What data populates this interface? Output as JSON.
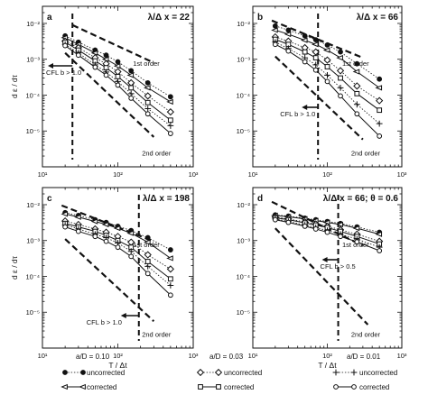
{
  "figure": {
    "shared_ylabel": "d ε / dτ",
    "shared_xlabel": "T / Δt",
    "legend": {
      "groups": [
        {
          "title": "a/D = 0.10",
          "uncorrected_label": "uncorrected",
          "corrected_label": "corrected",
          "uncorrected_marker": "filled-circle",
          "corrected_marker": "open-triangle-left"
        },
        {
          "title": "a/D = 0.03",
          "uncorrected_label": "uncorrected",
          "corrected_label": "corrected",
          "uncorrected_marker": "open-diamond",
          "corrected_marker": "open-square"
        },
        {
          "title": "a/D = 0.01",
          "uncorrected_label": "uncorrected",
          "corrected_label": "corrected",
          "uncorrected_marker": "plus",
          "corrected_marker": "open-circle"
        }
      ]
    }
  },
  "chart_data": [
    {
      "type": "line",
      "panel": "a",
      "title": "λ/Δ x = 22",
      "xlabel": "",
      "ylabel": "d ε / dτ",
      "xscale": "log",
      "yscale": "log",
      "xlim": [
        10,
        1000
      ],
      "ylim": [
        1e-06,
        0.03
      ],
      "x_tick_labels": [
        "10¹",
        "10²",
        "10³"
      ],
      "y_tick_labels": [
        "10⁻²",
        "10⁻³",
        "10⁻⁴",
        "10⁻⁵"
      ],
      "annotations": [
        "1st order",
        "2nd order",
        "CFL b > 1.0"
      ],
      "series": [
        {
          "name": "a/D = 0.10 uncorrected",
          "x": [
            20,
            30,
            50,
            70,
            100,
            150,
            250,
            500
          ],
          "y": [
            0.0045,
            0.003,
            0.0018,
            0.0013,
            0.00085,
            0.00048,
            0.00022,
            9e-05
          ]
        },
        {
          "name": "a/D = 0.10 corrected",
          "x": [
            20,
            30,
            50,
            70,
            100,
            150,
            250,
            500
          ],
          "y": [
            0.004,
            0.0026,
            0.0015,
            0.001,
            0.00065,
            0.00036,
            0.00016,
            6.5e-05
          ]
        },
        {
          "name": "a/D = 0.03 uncorrected",
          "x": [
            20,
            30,
            50,
            70,
            100,
            150,
            250,
            500
          ],
          "y": [
            0.0032,
            0.0021,
            0.0011,
            0.00075,
            0.00045,
            0.00022,
            9.5e-05,
            3.4e-05
          ]
        },
        {
          "name": "a/D = 0.03 corrected",
          "x": [
            20,
            30,
            50,
            70,
            100,
            150,
            250,
            500
          ],
          "y": [
            0.003,
            0.0018,
            0.0009,
            0.00058,
            0.00033,
            0.00016,
            6.2e-05,
            2e-05
          ]
        },
        {
          "name": "a/D = 0.01 uncorrected",
          "x": [
            20,
            30,
            50,
            70,
            100,
            150,
            250,
            500
          ],
          "y": [
            0.0026,
            0.0015,
            0.0007,
            0.00044,
            0.00024,
            0.00011,
            4.2e-05,
            1.4e-05
          ]
        },
        {
          "name": "a/D = 0.01 corrected",
          "x": [
            20,
            30,
            50,
            70,
            100,
            150,
            250,
            500
          ],
          "y": [
            0.0024,
            0.0013,
            0.0006,
            0.00036,
            0.00019,
            8.2e-05,
            3e-05,
            8.5e-06
          ]
        }
      ],
      "reference_lines": [
        {
          "name": "1st order",
          "x": [
            25,
            300
          ],
          "y": [
            0.009,
            0.0008
          ]
        },
        {
          "name": "2nd order",
          "x": [
            20,
            300
          ],
          "y": [
            0.0015,
            6.8e-06
          ]
        }
      ],
      "cfl_x": 25
    },
    {
      "type": "line",
      "panel": "b",
      "title": "λ/Δ x = 66",
      "xlabel": "",
      "ylabel": "",
      "xscale": "log",
      "yscale": "log",
      "xlim": [
        10,
        1000
      ],
      "ylim": [
        1e-06,
        0.03
      ],
      "x_tick_labels": [
        "10¹",
        "10²",
        "10³"
      ],
      "y_tick_labels": [
        "10⁻²",
        "10⁻³",
        "10⁻⁴",
        "10⁻⁵"
      ],
      "annotations": [
        "1st order",
        "2nd order",
        "CFL b > 1.0"
      ],
      "series": [
        {
          "name": "a/D = 0.10 uncorrected",
          "x": [
            20,
            30,
            50,
            70,
            100,
            150,
            250,
            500
          ],
          "y": [
            0.0085,
            0.0065,
            0.0045,
            0.0035,
            0.0025,
            0.0016,
            0.00075,
            0.00028
          ]
        },
        {
          "name": "a/D = 0.10 corrected",
          "x": [
            20,
            30,
            50,
            70,
            100,
            150,
            250,
            500
          ],
          "y": [
            0.0065,
            0.005,
            0.0034,
            0.0026,
            0.0018,
            0.0011,
            0.00045,
            0.00016
          ]
        },
        {
          "name": "a/D = 0.03 uncorrected",
          "x": [
            20,
            30,
            50,
            70,
            100,
            150,
            250,
            500
          ],
          "y": [
            0.0042,
            0.0032,
            0.0021,
            0.0016,
            0.00095,
            0.00048,
            0.00018,
            7e-05
          ]
        },
        {
          "name": "a/D = 0.03 corrected",
          "x": [
            20,
            30,
            50,
            70,
            100,
            150,
            250,
            500
          ],
          "y": [
            0.0036,
            0.0026,
            0.0016,
            0.0011,
            0.00062,
            0.0003,
            0.00011,
            3.8e-05
          ]
        },
        {
          "name": "a/D = 0.01 uncorrected",
          "x": [
            20,
            30,
            50,
            70,
            100,
            150,
            250,
            500
          ],
          "y": [
            0.003,
            0.002,
            0.0011,
            0.0007,
            0.00036,
            0.00016,
            5.5e-05,
            1.6e-05
          ]
        },
        {
          "name": "a/D = 0.01 corrected",
          "x": [
            20,
            30,
            50,
            70,
            100,
            150,
            250,
            500
          ],
          "y": [
            0.0026,
            0.0017,
            0.00085,
            0.0005,
            0.00024,
            9.5e-05,
            3e-05,
            7.2e-06
          ]
        }
      ],
      "reference_lines": [
        {
          "name": "1st order",
          "x": [
            18,
            300
          ],
          "y": [
            0.012,
            0.0011
          ]
        },
        {
          "name": "2nd order",
          "x": [
            20,
            300
          ],
          "y": [
            0.0012,
            5.8e-06
          ]
        }
      ],
      "cfl_x": 75
    },
    {
      "type": "line",
      "panel": "c",
      "title": "λ/Δ x = 198",
      "xlabel": "T / Δt",
      "ylabel": "d ε / dτ",
      "xscale": "log",
      "yscale": "log",
      "xlim": [
        10,
        1000
      ],
      "ylim": [
        1e-06,
        0.03
      ],
      "x_tick_labels": [
        "10¹",
        "10²",
        "10³"
      ],
      "y_tick_labels": [
        "10⁻²",
        "10⁻³",
        "10⁻⁴",
        "10⁻⁵"
      ],
      "annotations": [
        "1st order",
        "2nd order",
        "CFL b > 1.0"
      ],
      "series": [
        {
          "name": "a/D = 0.10 uncorrected",
          "x": [
            20,
            30,
            50,
            70,
            100,
            150,
            250,
            500
          ],
          "y": [
            0.006,
            0.005,
            0.0038,
            0.0032,
            0.0025,
            0.0019,
            0.0012,
            0.00055
          ]
        },
        {
          "name": "a/D = 0.10 corrected",
          "x": [
            20,
            30,
            50,
            70,
            100,
            150,
            250,
            500
          ],
          "y": [
            0.0055,
            0.0045,
            0.0034,
            0.0028,
            0.0022,
            0.0016,
            0.0009,
            0.00032
          ]
        },
        {
          "name": "a/D = 0.03 uncorrected",
          "x": [
            20,
            30,
            50,
            70,
            100,
            150,
            250,
            500
          ],
          "y": [
            0.0035,
            0.0028,
            0.0021,
            0.0017,
            0.0013,
            0.0009,
            0.0004,
            0.00016
          ]
        },
        {
          "name": "a/D = 0.03 corrected",
          "x": [
            20,
            30,
            50,
            70,
            100,
            150,
            250,
            500
          ],
          "y": [
            0.003,
            0.0024,
            0.0018,
            0.0014,
            0.001,
            0.00065,
            0.00026,
            8.5e-05
          ]
        },
        {
          "name": "a/D = 0.01 uncorrected",
          "x": [
            20,
            30,
            50,
            70,
            100,
            150,
            250,
            500
          ],
          "y": [
            0.0027,
            0.0021,
            0.0015,
            0.0012,
            0.00085,
            0.0005,
            0.00019,
            5.6e-05
          ]
        },
        {
          "name": "a/D = 0.01 corrected",
          "x": [
            20,
            30,
            50,
            70,
            100,
            150,
            250,
            500
          ],
          "y": [
            0.0024,
            0.0018,
            0.0013,
            0.00095,
            0.00065,
            0.00036,
            0.00012,
            3e-05
          ]
        }
      ],
      "reference_lines": [
        {
          "name": "1st order",
          "x": [
            18,
            300
          ],
          "y": [
            0.0095,
            0.00095
          ]
        },
        {
          "name": "2nd order",
          "x": [
            20,
            300
          ],
          "y": [
            0.0011,
            5.6e-06
          ]
        }
      ],
      "cfl_x": 190
    },
    {
      "type": "line",
      "panel": "d",
      "title": "λ/Δ x = 66;  θ = 0.6",
      "xlabel": "T / Δt",
      "ylabel": "",
      "xscale": "log",
      "yscale": "log",
      "xlim": [
        10,
        1000
      ],
      "ylim": [
        1e-06,
        0.03
      ],
      "x_tick_labels": [
        "10¹",
        "10²",
        "10³"
      ],
      "y_tick_labels": [
        "10⁻²",
        "10⁻³",
        "10⁻⁴",
        "10⁻⁵"
      ],
      "annotations": [
        "1st order",
        "2nd order",
        "CFL b > 0.5"
      ],
      "series": [
        {
          "name": "a/D = 0.10 uncorrected",
          "x": [
            20,
            30,
            50,
            70,
            100,
            150,
            250,
            500
          ],
          "y": [
            0.0052,
            0.0048,
            0.0042,
            0.0038,
            0.0034,
            0.003,
            0.0024,
            0.0017
          ]
        },
        {
          "name": "a/D = 0.10 corrected",
          "x": [
            20,
            30,
            50,
            70,
            100,
            150,
            250,
            500
          ],
          "y": [
            0.005,
            0.0046,
            0.004,
            0.0036,
            0.0032,
            0.0028,
            0.0022,
            0.0015
          ]
        },
        {
          "name": "a/D = 0.03 uncorrected",
          "x": [
            20,
            30,
            50,
            70,
            100,
            150,
            250,
            500
          ],
          "y": [
            0.0045,
            0.004,
            0.0033,
            0.0029,
            0.0025,
            0.002,
            0.0015,
            0.00095
          ]
        },
        {
          "name": "a/D = 0.03 corrected",
          "x": [
            20,
            30,
            50,
            70,
            100,
            150,
            250,
            500
          ],
          "y": [
            0.0043,
            0.0038,
            0.0031,
            0.0027,
            0.0023,
            0.0018,
            0.0013,
            0.0008
          ]
        },
        {
          "name": "a/D = 0.01 uncorrected",
          "x": [
            20,
            30,
            50,
            70,
            100,
            150,
            250,
            500
          ],
          "y": [
            0.004,
            0.0034,
            0.0027,
            0.0023,
            0.0019,
            0.0015,
            0.0011,
            0.00065
          ]
        },
        {
          "name": "a/D = 0.01 corrected",
          "x": [
            20,
            30,
            50,
            70,
            100,
            150,
            250,
            500
          ],
          "y": [
            0.0038,
            0.0032,
            0.0025,
            0.0021,
            0.0017,
            0.0013,
            0.00092,
            0.00052
          ]
        }
      ],
      "reference_lines": [
        {
          "name": "1st order",
          "x": [
            18,
            300
          ],
          "y": [
            0.012,
            0.00072
          ]
        },
        {
          "name": "2nd order",
          "x": [
            20,
            350
          ],
          "y": [
            0.0022,
            4.5e-06
          ]
        }
      ],
      "cfl_x": 140
    }
  ]
}
